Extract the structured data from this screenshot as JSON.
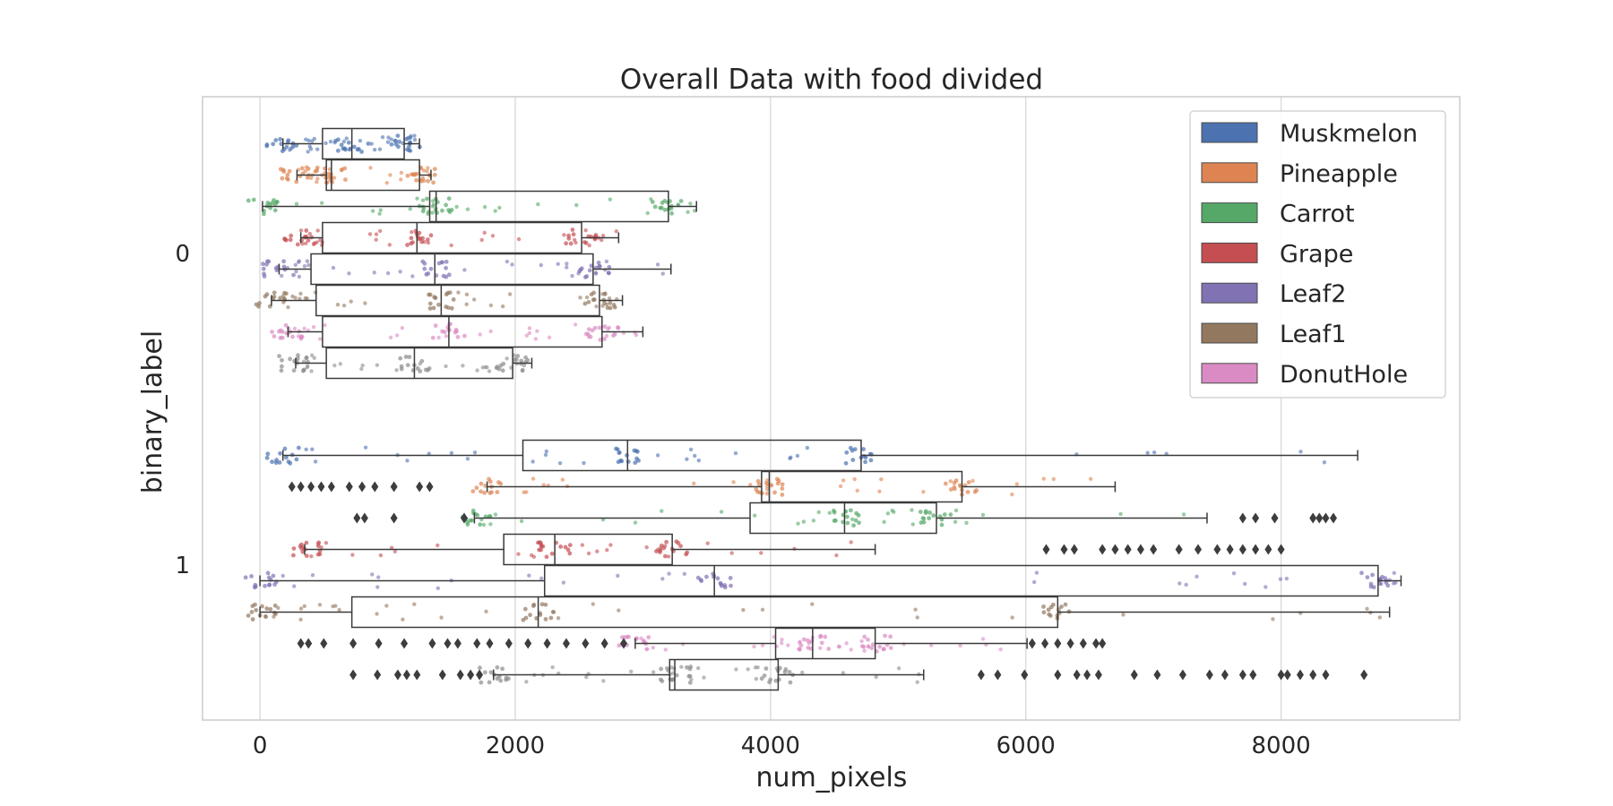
{
  "chart_data": {
    "type": "boxplot",
    "title": "Overall Data with food divided",
    "xlabel": "num_pixels",
    "ylabel": "binary_label",
    "xlim": [
      -450,
      9400
    ],
    "xticks": [
      0,
      2000,
      4000,
      6000,
      8000
    ],
    "xtick_labels": [
      "0",
      "2000",
      "4000",
      "6000",
      "8000"
    ],
    "ycategories": [
      "0",
      "1"
    ],
    "grid": "vertical",
    "legend_position": "top-right",
    "overlay": "stripplot",
    "series": [
      {
        "name": "Muskmelon",
        "color": "#4c72b0",
        "groups": [
          {
            "label": "0",
            "whislo": 180,
            "q1": 490,
            "med": 720,
            "q3": 1130,
            "whishi": 1250,
            "fliers": []
          },
          {
            "label": "1",
            "whislo": 180,
            "q1": 2060,
            "med": 2880,
            "q3": 4710,
            "whishi": 8600,
            "fliers": []
          }
        ]
      },
      {
        "name": "Pineapple",
        "color": "#dd8452",
        "groups": [
          {
            "label": "0",
            "whislo": 290,
            "q1": 520,
            "med": 560,
            "q3": 1250,
            "whishi": 1340,
            "fliers": []
          },
          {
            "label": "1",
            "whislo": 1780,
            "q1": 3930,
            "med": 3990,
            "q3": 5500,
            "whishi": 6700,
            "fliers": [
              250,
              320,
              400,
              480,
              560,
              700,
              800,
              900,
              1050,
              1250,
              1330
            ]
          }
        ]
      },
      {
        "name": "Carrot",
        "color": "#55a868",
        "groups": [
          {
            "label": "0",
            "whislo": 20,
            "q1": 1330,
            "med": 1380,
            "q3": 3200,
            "whishi": 3420,
            "fliers": []
          },
          {
            "label": "1",
            "whislo": 1680,
            "q1": 3840,
            "med": 4580,
            "q3": 5300,
            "whishi": 7420,
            "fliers": [
              760,
              820,
              1050,
              1600,
              7700,
              7800,
              7950,
              8250,
              8300,
              8350,
              8410
            ]
          }
        ]
      },
      {
        "name": "Grape",
        "color": "#c44e52",
        "groups": [
          {
            "label": "0",
            "whislo": 320,
            "q1": 490,
            "med": 1230,
            "q3": 2520,
            "whishi": 2810,
            "fliers": []
          },
          {
            "label": "1",
            "whislo": 350,
            "q1": 1910,
            "med": 2310,
            "q3": 3230,
            "whishi": 4820,
            "fliers": [
              6160,
              6300,
              6380,
              6600,
              6700,
              6800,
              6900,
              7000,
              7200,
              7350,
              7500,
              7600,
              7700,
              7800,
              7900,
              8000
            ]
          }
        ]
      },
      {
        "name": "Leaf2",
        "color": "#8172b3",
        "groups": [
          {
            "label": "0",
            "whislo": 150,
            "q1": 400,
            "med": 1370,
            "q3": 2610,
            "whishi": 3220,
            "fliers": []
          },
          {
            "label": "1",
            "whislo": 0,
            "q1": 2230,
            "med": 3560,
            "q3": 8760,
            "whishi": 8940,
            "fliers": []
          }
        ]
      },
      {
        "name": "Leaf1",
        "color": "#937860",
        "groups": [
          {
            "label": "0",
            "whislo": 90,
            "q1": 440,
            "med": 1420,
            "q3": 2660,
            "whishi": 2840,
            "fliers": []
          },
          {
            "label": "1",
            "whislo": 0,
            "q1": 720,
            "med": 2180,
            "q3": 6250,
            "whishi": 8850,
            "fliers": []
          }
        ]
      },
      {
        "name": "DonutHole",
        "color": "#da8bc3",
        "groups": [
          {
            "label": "0",
            "whislo": 220,
            "q1": 490,
            "med": 1480,
            "q3": 2680,
            "whishi": 3000,
            "fliers": []
          },
          {
            "label": "1",
            "whislo": 2940,
            "q1": 4040,
            "med": 4330,
            "q3": 4820,
            "whishi": 6010,
            "fliers": [
              320,
              380,
              500,
              730,
              930,
              1130,
              1350,
              1470,
              1550,
              1700,
              1800,
              1950,
              2100,
              2250,
              2400,
              2550,
              2700,
              2850,
              6050,
              6150,
              6250,
              6350,
              6450,
              6550,
              6600
            ]
          }
        ]
      },
      {
        "name": "",
        "color": "#8c8c8c",
        "groups": [
          {
            "label": "0",
            "whislo": 280,
            "q1": 520,
            "med": 1210,
            "q3": 1980,
            "whishi": 2130,
            "fliers": []
          },
          {
            "label": "1",
            "whislo": 1830,
            "q1": 3210,
            "med": 3250,
            "q3": 4060,
            "whishi": 5200,
            "fliers": [
              730,
              920,
              1080,
              1150,
              1230,
              1430,
              1570,
              1650,
              1720,
              5650,
              5780,
              5990,
              6250,
              6400,
              6480,
              6570,
              6850,
              7030,
              7230,
              7440,
              7560,
              7700,
              7780,
              8000,
              8050,
              8150,
              8250,
              8350,
              8650
            ]
          }
        ]
      }
    ]
  }
}
